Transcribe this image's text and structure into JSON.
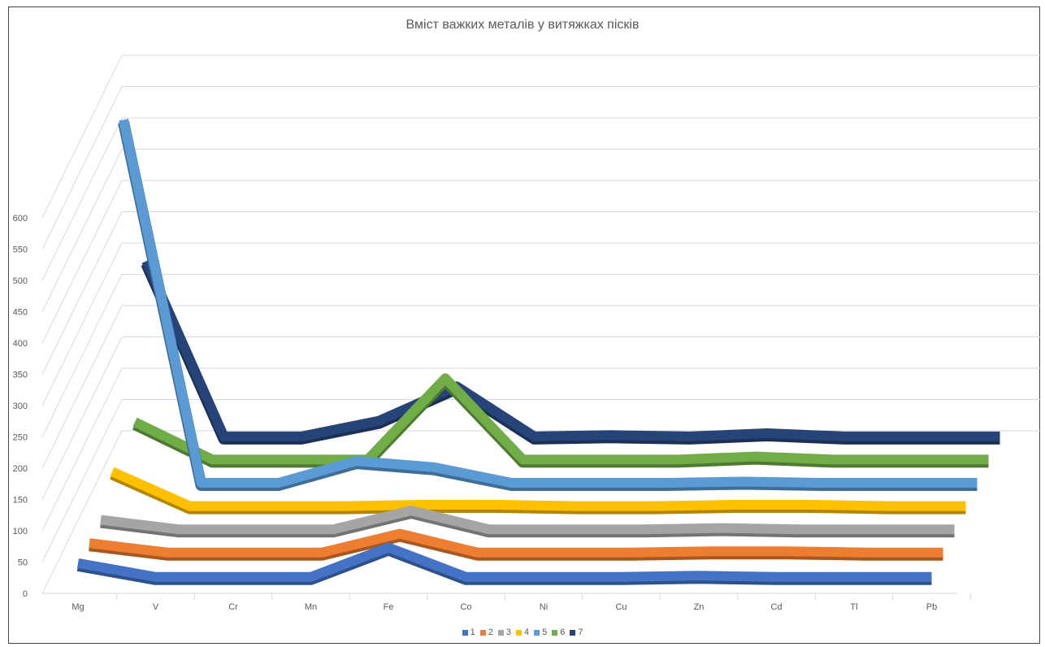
{
  "chart_data": {
    "type": "line",
    "title": "Вміст важких металів у витяжках пісків",
    "categories": [
      "Mg",
      "V",
      "Cr",
      "Mn",
      "Fe",
      "Co",
      "Ni",
      "Cu",
      "Zn",
      "Cd",
      "Tl",
      "Pb"
    ],
    "y_ticks": [
      "0",
      "50",
      "100",
      "150",
      "200",
      "250",
      "300",
      "350",
      "400",
      "450",
      "500",
      "550",
      "600"
    ],
    "ylim": [
      0,
      600
    ],
    "grid": true,
    "legend_position": "bottom",
    "projection": "3d-line",
    "series": [
      {
        "name": "1",
        "color": "#4472C4",
        "values": [
          30,
          8,
          8,
          8,
          55,
          8,
          8,
          8,
          10,
          8,
          8,
          8
        ]
      },
      {
        "name": "2",
        "color": "#ED7D31",
        "values": [
          25,
          10,
          10,
          10,
          40,
          10,
          10,
          10,
          12,
          12,
          10,
          10
        ]
      },
      {
        "name": "3",
        "color": "#A5A5A5",
        "values": [
          25,
          10,
          10,
          10,
          40,
          10,
          10,
          10,
          12,
          10,
          10,
          10
        ]
      },
      {
        "name": "4",
        "color": "#FFC000",
        "values": [
          65,
          10,
          10,
          10,
          12,
          12,
          10,
          10,
          12,
          12,
          10,
          10
        ]
      },
      {
        "name": "5",
        "color": "#5B9BD5",
        "values": [
          590,
          10,
          10,
          45,
          35,
          10,
          10,
          10,
          12,
          10,
          10,
          10
        ]
      },
      {
        "name": "6",
        "color": "#70AD47",
        "values": [
          70,
          10,
          10,
          10,
          140,
          10,
          10,
          10,
          15,
          10,
          10,
          10
        ]
      },
      {
        "name": "7",
        "color": "#264478",
        "values": [
          290,
          10,
          10,
          35,
          90,
          10,
          12,
          10,
          15,
          10,
          10,
          10
        ]
      }
    ]
  }
}
